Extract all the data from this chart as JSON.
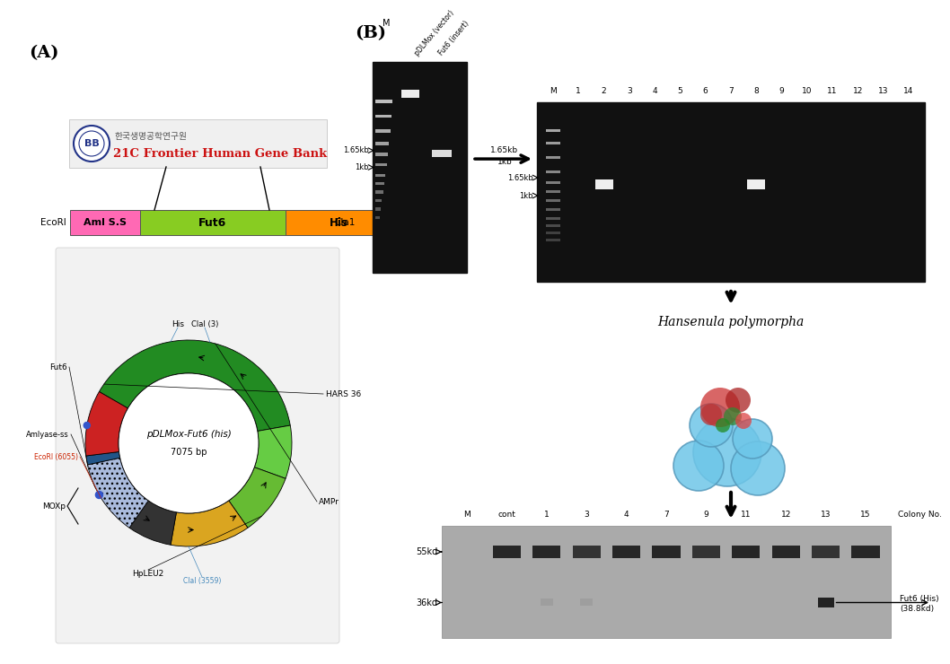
{
  "panel_A_label": "(A)",
  "panel_B_label": "(B)",
  "gene_bank_text1": "한국생명공학연구원",
  "gene_bank_text2": "21C Frontier Human Gene Bank",
  "construct_labels": [
    "EcoRI",
    "Aml S.S",
    "Fut6",
    "His",
    "Cla1"
  ],
  "construct_colors": [
    "#FF69B4",
    "#90EE40",
    "#FFA500"
  ],
  "plasmid_name": "pDLMox-Fut6 (his)",
  "plasmid_size": "7075 bp",
  "gel1_labels": [
    "M",
    "pDLMox (vector)",
    "Fut6 (insert)"
  ],
  "gel1_size_markers": [
    "1.65kb",
    "1kb"
  ],
  "gel2_labels": [
    "M",
    "1",
    "2",
    "3",
    "4",
    "5",
    "6",
    "7",
    "8",
    "9",
    "10",
    "11",
    "12",
    "13",
    "14"
  ],
  "gel2_size_markers": [
    "1.65kb",
    "1kb"
  ],
  "arrow_label": "Hansenula polymorpha",
  "wb_labels": [
    "M",
    "cont",
    "1",
    "3",
    "4",
    "7",
    "9",
    "11",
    "12",
    "13",
    "15"
  ],
  "wb_size_markers": [
    "55kd",
    "36kd"
  ],
  "wb_annotation": "Colony No.",
  "wb_band_label1": "Fut6 (His)",
  "wb_band_label2": "(38.8kd)",
  "background_color": "#FFFFFF"
}
